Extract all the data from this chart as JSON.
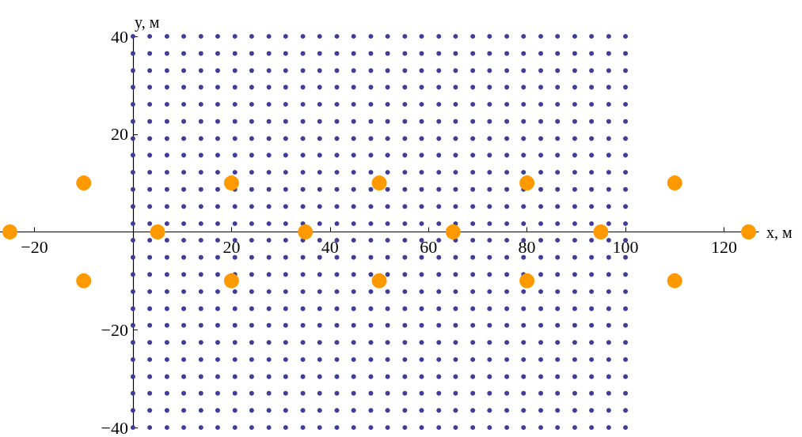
{
  "chart_data": {
    "type": "scatter",
    "xlabel": "x, м",
    "ylabel": "y, м",
    "xlim": [
      -27,
      127
    ],
    "ylim": [
      -40,
      40
    ],
    "xticks": [
      -20,
      20,
      40,
      60,
      80,
      100,
      120
    ],
    "yticks": [
      -40,
      -20,
      20,
      40
    ],
    "marker": "circle",
    "series": [
      {
        "color": "#3f3d99",
        "x": [
          0,
          3.4,
          6.9,
          10.3,
          13.8,
          17.2,
          20.7,
          24.1,
          27.6,
          31,
          34.5,
          37.9,
          41.4,
          44.8,
          48.3,
          51.7,
          55.2,
          58.6,
          62.1,
          65.5,
          69,
          72.4,
          75.9,
          79.3,
          82.8,
          86.2,
          89.7,
          93.1,
          96.6,
          100,
          0,
          3.4,
          6.9,
          10.3,
          13.8,
          17.2,
          20.7,
          24.1,
          27.6,
          31,
          34.5,
          37.9,
          41.4,
          44.8,
          48.3,
          51.7,
          55.2,
          58.6,
          62.1,
          65.5,
          69,
          72.4,
          75.9,
          79.3,
          82.8,
          86.2,
          89.7,
          93.1,
          96.6,
          100,
          0,
          3.4,
          6.9,
          10.3,
          13.8,
          17.2,
          20.7,
          24.1,
          27.6,
          31,
          34.5,
          37.9,
          41.4,
          44.8,
          48.3,
          51.7,
          55.2,
          58.6,
          62.1,
          65.5,
          69,
          72.4,
          75.9,
          79.3,
          82.8,
          86.2,
          89.7,
          93.1,
          96.6,
          100,
          0,
          3.4,
          6.9,
          10.3,
          13.8,
          17.2,
          20.7,
          24.1,
          27.6,
          31,
          34.5,
          37.9,
          41.4,
          44.8,
          48.3,
          51.7,
          55.2,
          58.6,
          62.1,
          65.5,
          69,
          72.4,
          75.9,
          79.3,
          82.8,
          86.2,
          89.7,
          93.1,
          96.6,
          100,
          0,
          3.4,
          6.9,
          10.3,
          13.8,
          17.2,
          20.7,
          24.1,
          27.6,
          31,
          34.5,
          37.9,
          41.4,
          44.8,
          48.3,
          51.7,
          55.2,
          58.6,
          62.1,
          65.5,
          69,
          72.4,
          75.9,
          79.3,
          82.8,
          86.2,
          89.7,
          93.1,
          96.6,
          100,
          0,
          3.4,
          6.9,
          10.3,
          13.8,
          17.2,
          20.7,
          24.1,
          27.6,
          31,
          34.5,
          37.9,
          41.4,
          44.8,
          48.3,
          51.7,
          55.2,
          58.6,
          62.1,
          65.5,
          69,
          72.4,
          75.9,
          79.3,
          82.8,
          86.2,
          89.7,
          93.1,
          96.6,
          100,
          0,
          3.4,
          6.9,
          10.3,
          13.8,
          17.2,
          20.7,
          24.1,
          27.6,
          31,
          34.5,
          37.9,
          41.4,
          44.8,
          48.3,
          51.7,
          55.2,
          58.6,
          62.1,
          65.5,
          69,
          72.4,
          75.9,
          79.3,
          82.8,
          86.2,
          89.7,
          93.1,
          96.6,
          100,
          0,
          3.4,
          6.9,
          10.3,
          13.8,
          17.2,
          20.7,
          24.1,
          27.6,
          31,
          34.5,
          37.9,
          41.4,
          44.8,
          48.3,
          51.7,
          55.2,
          58.6,
          62.1,
          65.5,
          69,
          72.4,
          75.9,
          79.3,
          82.8,
          86.2,
          89.7,
          93.1,
          96.6,
          100,
          0,
          3.4,
          6.9,
          10.3,
          13.8,
          17.2,
          20.7,
          24.1,
          27.6,
          31,
          34.5,
          37.9,
          41.4,
          44.8,
          48.3,
          51.7,
          55.2,
          58.6,
          62.1,
          65.5,
          69,
          72.4,
          75.9,
          79.3,
          82.8,
          86.2,
          89.7,
          93.1,
          96.6,
          100,
          0,
          3.4,
          6.9,
          10.3,
          13.8,
          17.2,
          20.7,
          24.1,
          27.6,
          31,
          34.5,
          37.9,
          41.4,
          44.8,
          48.3,
          51.7,
          55.2,
          58.6,
          62.1,
          65.5,
          69,
          72.4,
          75.9,
          79.3,
          82.8,
          86.2,
          89.7,
          93.1,
          96.6,
          100,
          0,
          3.4,
          6.9,
          10.3,
          13.8,
          17.2,
          20.7,
          24.1,
          27.6,
          31,
          34.5,
          37.9,
          41.4,
          44.8,
          48.3,
          51.7,
          55.2,
          58.6,
          62.1,
          65.5,
          69,
          72.4,
          75.9,
          79.3,
          82.8,
          86.2,
          89.7,
          93.1,
          96.6,
          100,
          0,
          3.4,
          6.9,
          10.3,
          13.8,
          17.2,
          20.7,
          24.1,
          27.6,
          31,
          34.5,
          37.9,
          41.4,
          44.8,
          48.3,
          51.7,
          55.2,
          58.6,
          62.1,
          65.5,
          69,
          72.4,
          75.9,
          79.3,
          82.8,
          86.2,
          89.7,
          93.1,
          96.6,
          100,
          0,
          3.4,
          6.9,
          10.3,
          13.8,
          17.2,
          20.7,
          24.1,
          27.6,
          31,
          34.5,
          37.9,
          41.4,
          44.8,
          48.3,
          51.7,
          55.2,
          58.6,
          62.1,
          65.5,
          69,
          72.4,
          75.9,
          79.3,
          82.8,
          86.2,
          89.7,
          93.1,
          96.6,
          100,
          0,
          3.4,
          6.9,
          10.3,
          13.8,
          17.2,
          20.7,
          24.1,
          27.6,
          31,
          34.5,
          37.9,
          41.4,
          44.8,
          48.3,
          51.7,
          55.2,
          58.6,
          62.1,
          65.5,
          69,
          72.4,
          75.9,
          79.3,
          82.8,
          86.2,
          89.7,
          93.1,
          96.6,
          100,
          0,
          3.4,
          6.9,
          10.3,
          13.8,
          17.2,
          20.7,
          24.1,
          27.6,
          31,
          34.5,
          37.9,
          41.4,
          44.8,
          48.3,
          51.7,
          55.2,
          58.6,
          62.1,
          65.5,
          69,
          72.4,
          75.9,
          79.3,
          82.8,
          86.2,
          89.7,
          93.1,
          96.6,
          100,
          0,
          3.4,
          6.9,
          10.3,
          13.8,
          17.2,
          20.7,
          24.1,
          27.6,
          31,
          34.5,
          37.9,
          41.4,
          44.8,
          48.3,
          51.7,
          55.2,
          58.6,
          62.1,
          65.5,
          69,
          72.4,
          75.9,
          79.3,
          82.8,
          86.2,
          89.7,
          93.1,
          96.6,
          100,
          0,
          3.4,
          6.9,
          10.3,
          13.8,
          17.2,
          20.7,
          24.1,
          27.6,
          31,
          34.5,
          37.9,
          41.4,
          44.8,
          48.3,
          51.7,
          55.2,
          58.6,
          62.1,
          65.5,
          69,
          72.4,
          75.9,
          79.3,
          82.8,
          86.2,
          89.7,
          93.1,
          96.6,
          100,
          0,
          3.4,
          6.9,
          10.3,
          13.8,
          17.2,
          20.7,
          24.1,
          27.6,
          31,
          34.5,
          37.9,
          41.4,
          44.8,
          48.3,
          51.7,
          55.2,
          58.6,
          62.1,
          65.5,
          69,
          72.4,
          75.9,
          79.3,
          82.8,
          86.2,
          89.7,
          93.1,
          96.6,
          100,
          0,
          3.4,
          6.9,
          10.3,
          13.8,
          17.2,
          20.7,
          24.1,
          27.6,
          31,
          34.5,
          37.9,
          41.4,
          44.8,
          48.3,
          51.7,
          55.2,
          58.6,
          62.1,
          65.5,
          69,
          72.4,
          75.9,
          79.3,
          82.8,
          86.2,
          89.7,
          93.1,
          96.6,
          100,
          0,
          3.4,
          6.9,
          10.3,
          13.8,
          17.2,
          20.7,
          24.1,
          27.6,
          31,
          34.5,
          37.9,
          41.4,
          44.8,
          48.3,
          51.7,
          55.2,
          58.6,
          62.1,
          65.5,
          69,
          72.4,
          75.9,
          79.3,
          82.8,
          86.2,
          89.7,
          93.1,
          96.6,
          100,
          0,
          3.4,
          6.9,
          10.3,
          13.8,
          17.2,
          20.7,
          24.1,
          27.6,
          31,
          34.5,
          37.9,
          41.4,
          44.8,
          48.3,
          51.7,
          55.2,
          58.6,
          62.1,
          65.5,
          69,
          72.4,
          75.9,
          79.3,
          82.8,
          86.2,
          89.7,
          93.1,
          96.6,
          100,
          0,
          3.4,
          6.9,
          10.3,
          13.8,
          17.2,
          20.7,
          24.1,
          27.6,
          31,
          34.5,
          37.9,
          41.4,
          44.8,
          48.3,
          51.7,
          55.2,
          58.6,
          62.1,
          65.5,
          69,
          72.4,
          75.9,
          79.3,
          82.8,
          86.2,
          89.7,
          93.1,
          96.6,
          100,
          0,
          3.4,
          6.9,
          10.3,
          13.8,
          17.2,
          20.7,
          24.1,
          27.6,
          31,
          34.5,
          37.9,
          41.4,
          44.8,
          48.3,
          51.7,
          55.2,
          58.6,
          62.1,
          65.5,
          69,
          72.4,
          75.9,
          79.3,
          82.8,
          86.2,
          89.7,
          93.1,
          96.6,
          100,
          0,
          3.4,
          6.9,
          10.3,
          13.8,
          17.2,
          20.7,
          24.1,
          27.6,
          31,
          34.5,
          37.9,
          41.4,
          44.8,
          48.3,
          51.7,
          55.2,
          58.6,
          62.1,
          65.5,
          69,
          72.4,
          75.9,
          79.3,
          82.8,
          86.2,
          89.7,
          93.1,
          96.6,
          100
        ],
        "values": [
          40,
          40,
          40,
          40,
          40,
          40,
          40,
          40,
          40,
          40,
          40,
          40,
          40,
          40,
          40,
          40,
          40,
          40,
          40,
          40,
          40,
          40,
          40,
          40,
          40,
          40,
          40,
          40,
          40,
          40,
          36.5,
          36.5,
          36.5,
          36.5,
          36.5,
          36.5,
          36.5,
          36.5,
          36.5,
          36.5,
          36.5,
          36.5,
          36.5,
          36.5,
          36.5,
          36.5,
          36.5,
          36.5,
          36.5,
          36.5,
          36.5,
          36.5,
          36.5,
          36.5,
          36.5,
          36.5,
          36.5,
          36.5,
          36.5,
          36.5,
          33,
          33,
          33,
          33,
          33,
          33,
          33,
          33,
          33,
          33,
          33,
          33,
          33,
          33,
          33,
          33,
          33,
          33,
          33,
          33,
          33,
          33,
          33,
          33,
          33,
          33,
          33,
          33,
          33,
          33,
          29.6,
          29.6,
          29.6,
          29.6,
          29.6,
          29.6,
          29.6,
          29.6,
          29.6,
          29.6,
          29.6,
          29.6,
          29.6,
          29.6,
          29.6,
          29.6,
          29.6,
          29.6,
          29.6,
          29.6,
          29.6,
          29.6,
          29.6,
          29.6,
          29.6,
          29.6,
          29.6,
          29.6,
          29.6,
          29.6,
          26.1,
          26.1,
          26.1,
          26.1,
          26.1,
          26.1,
          26.1,
          26.1,
          26.1,
          26.1,
          26.1,
          26.1,
          26.1,
          26.1,
          26.1,
          26.1,
          26.1,
          26.1,
          26.1,
          26.1,
          26.1,
          26.1,
          26.1,
          26.1,
          26.1,
          26.1,
          26.1,
          26.1,
          26.1,
          26.1,
          22.6,
          22.6,
          22.6,
          22.6,
          22.6,
          22.6,
          22.6,
          22.6,
          22.6,
          22.6,
          22.6,
          22.6,
          22.6,
          22.6,
          22.6,
          22.6,
          22.6,
          22.6,
          22.6,
          22.6,
          22.6,
          22.6,
          22.6,
          22.6,
          22.6,
          22.6,
          22.6,
          22.6,
          22.6,
          22.6,
          19.1,
          19.1,
          19.1,
          19.1,
          19.1,
          19.1,
          19.1,
          19.1,
          19.1,
          19.1,
          19.1,
          19.1,
          19.1,
          19.1,
          19.1,
          19.1,
          19.1,
          19.1,
          19.1,
          19.1,
          19.1,
          19.1,
          19.1,
          19.1,
          19.1,
          19.1,
          19.1,
          19.1,
          19.1,
          19.1,
          15.7,
          15.7,
          15.7,
          15.7,
          15.7,
          15.7,
          15.7,
          15.7,
          15.7,
          15.7,
          15.7,
          15.7,
          15.7,
          15.7,
          15.7,
          15.7,
          15.7,
          15.7,
          15.7,
          15.7,
          15.7,
          15.7,
          15.7,
          15.7,
          15.7,
          15.7,
          15.7,
          15.7,
          15.7,
          15.7,
          12.2,
          12.2,
          12.2,
          12.2,
          12.2,
          12.2,
          12.2,
          12.2,
          12.2,
          12.2,
          12.2,
          12.2,
          12.2,
          12.2,
          12.2,
          12.2,
          12.2,
          12.2,
          12.2,
          12.2,
          12.2,
          12.2,
          12.2,
          12.2,
          12.2,
          12.2,
          12.2,
          12.2,
          12.2,
          12.2,
          8.7,
          8.7,
          8.7,
          8.7,
          8.7,
          8.7,
          8.7,
          8.7,
          8.7,
          8.7,
          8.7,
          8.7,
          8.7,
          8.7,
          8.7,
          8.7,
          8.7,
          8.7,
          8.7,
          8.7,
          8.7,
          8.7,
          8.7,
          8.7,
          8.7,
          8.7,
          8.7,
          8.7,
          8.7,
          8.7,
          5.2,
          5.2,
          5.2,
          5.2,
          5.2,
          5.2,
          5.2,
          5.2,
          5.2,
          5.2,
          5.2,
          5.2,
          5.2,
          5.2,
          5.2,
          5.2,
          5.2,
          5.2,
          5.2,
          5.2,
          5.2,
          5.2,
          5.2,
          5.2,
          5.2,
          5.2,
          5.2,
          5.2,
          5.2,
          5.2,
          1.7,
          1.7,
          1.7,
          1.7,
          1.7,
          1.7,
          1.7,
          1.7,
          1.7,
          1.7,
          1.7,
          1.7,
          1.7,
          1.7,
          1.7,
          1.7,
          1.7,
          1.7,
          1.7,
          1.7,
          1.7,
          1.7,
          1.7,
          1.7,
          1.7,
          1.7,
          1.7,
          1.7,
          1.7,
          1.7,
          -1.7,
          -1.7,
          -1.7,
          -1.7,
          -1.7,
          -1.7,
          -1.7,
          -1.7,
          -1.7,
          -1.7,
          -1.7,
          -1.7,
          -1.7,
          -1.7,
          -1.7,
          -1.7,
          -1.7,
          -1.7,
          -1.7,
          -1.7,
          -1.7,
          -1.7,
          -1.7,
          -1.7,
          -1.7,
          -1.7,
          -1.7,
          -1.7,
          -1.7,
          -1.7,
          -5.2,
          -5.2,
          -5.2,
          -5.2,
          -5.2,
          -5.2,
          -5.2,
          -5.2,
          -5.2,
          -5.2,
          -5.2,
          -5.2,
          -5.2,
          -5.2,
          -5.2,
          -5.2,
          -5.2,
          -5.2,
          -5.2,
          -5.2,
          -5.2,
          -5.2,
          -5.2,
          -5.2,
          -5.2,
          -5.2,
          -5.2,
          -5.2,
          -5.2,
          -5.2,
          -8.7,
          -8.7,
          -8.7,
          -8.7,
          -8.7,
          -8.7,
          -8.7,
          -8.7,
          -8.7,
          -8.7,
          -8.7,
          -8.7,
          -8.7,
          -8.7,
          -8.7,
          -8.7,
          -8.7,
          -8.7,
          -8.7,
          -8.7,
          -8.7,
          -8.7,
          -8.7,
          -8.7,
          -8.7,
          -8.7,
          -8.7,
          -8.7,
          -8.7,
          -8.7,
          -12.2,
          -12.2,
          -12.2,
          -12.2,
          -12.2,
          -12.2,
          -12.2,
          -12.2,
          -12.2,
          -12.2,
          -12.2,
          -12.2,
          -12.2,
          -12.2,
          -12.2,
          -12.2,
          -12.2,
          -12.2,
          -12.2,
          -12.2,
          -12.2,
          -12.2,
          -12.2,
          -12.2,
          -12.2,
          -12.2,
          -12.2,
          -12.2,
          -12.2,
          -12.2,
          -15.7,
          -15.7,
          -15.7,
          -15.7,
          -15.7,
          -15.7,
          -15.7,
          -15.7,
          -15.7,
          -15.7,
          -15.7,
          -15.7,
          -15.7,
          -15.7,
          -15.7,
          -15.7,
          -15.7,
          -15.7,
          -15.7,
          -15.7,
          -15.7,
          -15.7,
          -15.7,
          -15.7,
          -15.7,
          -15.7,
          -15.7,
          -15.7,
          -15.7,
          -15.7,
          -19.1,
          -19.1,
          -19.1,
          -19.1,
          -19.1,
          -19.1,
          -19.1,
          -19.1,
          -19.1,
          -19.1,
          -19.1,
          -19.1,
          -19.1,
          -19.1,
          -19.1,
          -19.1,
          -19.1,
          -19.1,
          -19.1,
          -19.1,
          -19.1,
          -19.1,
          -19.1,
          -19.1,
          -19.1,
          -19.1,
          -19.1,
          -19.1,
          -19.1,
          -19.1,
          -22.6,
          -22.6,
          -22.6,
          -22.6,
          -22.6,
          -22.6,
          -22.6,
          -22.6,
          -22.6,
          -22.6,
          -22.6,
          -22.6,
          -22.6,
          -22.6,
          -22.6,
          -22.6,
          -22.6,
          -22.6,
          -22.6,
          -22.6,
          -22.6,
          -22.6,
          -22.6,
          -22.6,
          -22.6,
          -22.6,
          -22.6,
          -22.6,
          -22.6,
          -22.6,
          -26.1,
          -26.1,
          -26.1,
          -26.1,
          -26.1,
          -26.1,
          -26.1,
          -26.1,
          -26.1,
          -26.1,
          -26.1,
          -26.1,
          -26.1,
          -26.1,
          -26.1,
          -26.1,
          -26.1,
          -26.1,
          -26.1,
          -26.1,
          -26.1,
          -26.1,
          -26.1,
          -26.1,
          -26.1,
          -26.1,
          -26.1,
          -26.1,
          -26.1,
          -26.1,
          -29.6,
          -29.6,
          -29.6,
          -29.6,
          -29.6,
          -29.6,
          -29.6,
          -29.6,
          -29.6,
          -29.6,
          -29.6,
          -29.6,
          -29.6,
          -29.6,
          -29.6,
          -29.6,
          -29.6,
          -29.6,
          -29.6,
          -29.6,
          -29.6,
          -29.6,
          -29.6,
          -29.6,
          -29.6,
          -29.6,
          -29.6,
          -29.6,
          -29.6,
          -29.6,
          -33,
          -33,
          -33,
          -33,
          -33,
          -33,
          -33,
          -33,
          -33,
          -33,
          -33,
          -33,
          -33,
          -33,
          -33,
          -33,
          -33,
          -33,
          -33,
          -33,
          -33,
          -33,
          -33,
          -33,
          -33,
          -33,
          -33,
          -33,
          -33,
          -33,
          -36.5,
          -36.5,
          -36.5,
          -36.5,
          -36.5,
          -36.5,
          -36.5,
          -36.5,
          -36.5,
          -36.5,
          -36.5,
          -36.5,
          -36.5,
          -36.5,
          -36.5,
          -36.5,
          -36.5,
          -36.5,
          -36.5,
          -36.5,
          -36.5,
          -36.5,
          -36.5,
          -36.5,
          -36.5,
          -36.5,
          -36.5,
          -36.5,
          -36.5,
          -36.5,
          -40,
          -40,
          -40,
          -40,
          -40,
          -40,
          -40,
          -40,
          -40,
          -40,
          -40,
          -40,
          -40,
          -40,
          -40,
          -40,
          -40,
          -40,
          -40,
          -40,
          -40,
          -40,
          -40,
          -40,
          -40,
          -40,
          -40,
          -40,
          -40,
          -40
        ]
      },
      {
        "color": "#ff9900",
        "x": [
          -25,
          -10,
          -10,
          5,
          20,
          20,
          35,
          50,
          50,
          65,
          80,
          80,
          95,
          110,
          110,
          125
        ],
        "values": [
          0,
          10,
          -10,
          0,
          10,
          -10,
          0,
          10,
          -10,
          0,
          10,
          -10,
          0,
          10,
          -10,
          0
        ]
      }
    ]
  }
}
